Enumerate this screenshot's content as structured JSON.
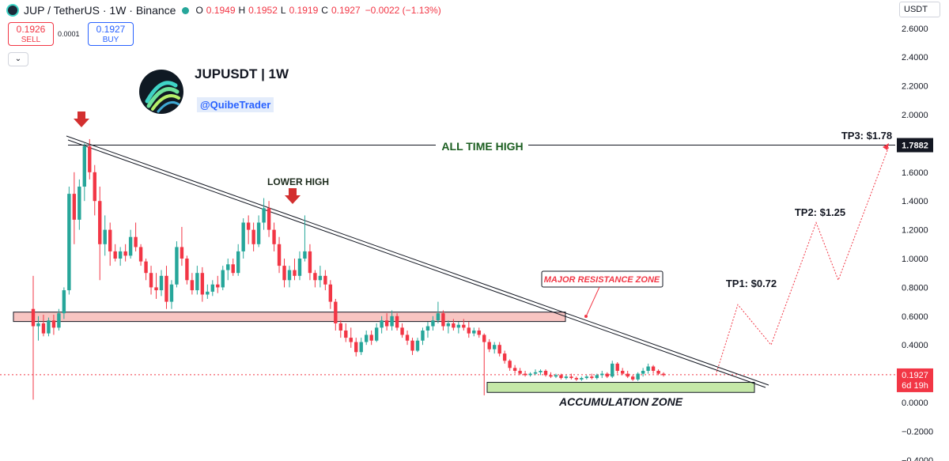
{
  "header": {
    "title": "JUP / TetherUS · 1W · Binance",
    "ohlc": {
      "open_label": "O",
      "open": "0.1949",
      "high_label": "H",
      "high": "0.1952",
      "low_label": "L",
      "low": "0.1919",
      "close_label": "C",
      "close": "0.1927",
      "change": "−0.0022 (−1.13%)"
    }
  },
  "trade": {
    "sell_price": "0.1926",
    "sell_label": "SELL",
    "spread": "0.0001",
    "buy_price": "0.1927",
    "buy_label": "BUY"
  },
  "collapse_icon": "⌄",
  "brand": {
    "title": "JUPUSDT | 1W",
    "handle": "@QuibeTrader"
  },
  "currency": "USDT",
  "colors": {
    "up": "#26a69a",
    "down": "#f23645",
    "ath_text": "#1b5e20",
    "resistance": "#f23645"
  },
  "chart_data": {
    "type": "candlestick",
    "yaxis": {
      "ticks": [
        2.6,
        2.4,
        2.2,
        2.0,
        1.8,
        1.6,
        1.4,
        1.2,
        1.0,
        0.8,
        0.6,
        0.4,
        0.2,
        0.0,
        -0.2,
        -0.4
      ],
      "tick_labels": [
        "2.6000",
        "2.4000",
        "2.2000",
        "2.0000",
        "1.8000",
        "1.6000",
        "1.4000",
        "1.2000",
        "1.0000",
        "0.8000",
        "0.6000",
        "0.4000",
        "0.2000",
        "0.0000",
        "−0.2000",
        "−0.4000"
      ]
    },
    "price_labels": {
      "ath": "1.7882",
      "ath_value": 1.7882,
      "last": "0.1927",
      "last_value": 0.1927,
      "countdown": "6d 19h"
    },
    "candles": [
      [
        0.65,
        0.88,
        0.02,
        0.53
      ],
      [
        0.53,
        0.6,
        0.43,
        0.55
      ],
      [
        0.55,
        0.61,
        0.46,
        0.48
      ],
      [
        0.48,
        0.59,
        0.46,
        0.57
      ],
      [
        0.57,
        0.61,
        0.47,
        0.52
      ],
      [
        0.52,
        0.65,
        0.5,
        0.62
      ],
      [
        0.62,
        0.8,
        0.58,
        0.78
      ],
      [
        0.78,
        1.5,
        0.75,
        1.45
      ],
      [
        1.45,
        1.6,
        1.1,
        1.27
      ],
      [
        1.27,
        1.55,
        1.2,
        1.5
      ],
      [
        1.5,
        1.8,
        1.4,
        1.78
      ],
      [
        1.78,
        1.83,
        1.55,
        1.6
      ],
      [
        1.6,
        1.65,
        1.3,
        1.4
      ],
      [
        1.4,
        1.5,
        0.85,
        1.1
      ],
      [
        1.1,
        1.3,
        1.02,
        1.2
      ],
      [
        1.2,
        1.25,
        0.95,
        1.05
      ],
      [
        1.05,
        1.1,
        0.98,
        1.0
      ],
      [
        1.0,
        1.08,
        0.95,
        1.05
      ],
      [
        1.05,
        1.1,
        0.98,
        1.02
      ],
      [
        1.02,
        1.2,
        1.0,
        1.15
      ],
      [
        1.15,
        1.25,
        1.05,
        1.08
      ],
      [
        1.08,
        1.1,
        0.95,
        0.98
      ],
      [
        0.98,
        1.0,
        0.85,
        0.9
      ],
      [
        0.9,
        0.95,
        0.75,
        0.8
      ],
      [
        0.8,
        0.9,
        0.72,
        0.78
      ],
      [
        0.78,
        0.92,
        0.74,
        0.88
      ],
      [
        0.88,
        0.95,
        0.65,
        0.7
      ],
      [
        0.7,
        0.85,
        0.65,
        0.82
      ],
      [
        0.82,
        1.12,
        0.8,
        1.08
      ],
      [
        1.08,
        1.22,
        0.95,
        1.0
      ],
      [
        1.0,
        1.02,
        0.82,
        0.85
      ],
      [
        0.85,
        0.9,
        0.75,
        0.78
      ],
      [
        0.78,
        0.95,
        0.75,
        0.9
      ],
      [
        0.9,
        0.94,
        0.7,
        0.75
      ],
      [
        0.75,
        0.82,
        0.72,
        0.77
      ],
      [
        0.77,
        0.85,
        0.74,
        0.82
      ],
      [
        0.82,
        0.88,
        0.76,
        0.8
      ],
      [
        0.8,
        0.95,
        0.78,
        0.92
      ],
      [
        0.92,
        1.0,
        0.85,
        0.96
      ],
      [
        0.96,
        1.0,
        0.88,
        0.9
      ],
      [
        0.9,
        1.1,
        0.88,
        1.05
      ],
      [
        1.05,
        1.28,
        1.0,
        1.25
      ],
      [
        1.25,
        1.3,
        1.1,
        1.2
      ],
      [
        1.2,
        1.25,
        1.05,
        1.1
      ],
      [
        1.1,
        1.3,
        1.08,
        1.25
      ],
      [
        1.25,
        1.42,
        1.2,
        1.35
      ],
      [
        1.35,
        1.4,
        1.15,
        1.2
      ],
      [
        1.2,
        1.25,
        1.05,
        1.1
      ],
      [
        1.1,
        1.15,
        0.9,
        0.95
      ],
      [
        0.95,
        1.0,
        0.8,
        0.85
      ],
      [
        0.85,
        0.95,
        0.8,
        0.92
      ],
      [
        0.92,
        1.0,
        0.85,
        0.88
      ],
      [
        0.88,
        1.05,
        0.85,
        1.0
      ],
      [
        1.0,
        1.3,
        0.98,
        1.05
      ],
      [
        1.05,
        1.1,
        0.85,
        0.9
      ],
      [
        0.9,
        0.92,
        0.8,
        0.85
      ],
      [
        0.85,
        0.95,
        0.8,
        0.88
      ],
      [
        0.88,
        0.92,
        0.78,
        0.82
      ],
      [
        0.82,
        0.85,
        0.65,
        0.7
      ],
      [
        0.7,
        0.72,
        0.5,
        0.55
      ],
      [
        0.55,
        0.57,
        0.45,
        0.5
      ],
      [
        0.5,
        0.55,
        0.42,
        0.45
      ],
      [
        0.45,
        0.52,
        0.38,
        0.42
      ],
      [
        0.42,
        0.45,
        0.32,
        0.35
      ],
      [
        0.35,
        0.45,
        0.33,
        0.42
      ],
      [
        0.42,
        0.5,
        0.4,
        0.47
      ],
      [
        0.47,
        0.5,
        0.4,
        0.43
      ],
      [
        0.43,
        0.55,
        0.42,
        0.52
      ],
      [
        0.52,
        0.6,
        0.48,
        0.57
      ],
      [
        0.57,
        0.62,
        0.5,
        0.53
      ],
      [
        0.53,
        0.64,
        0.5,
        0.6
      ],
      [
        0.6,
        0.62,
        0.5,
        0.52
      ],
      [
        0.52,
        0.55,
        0.45,
        0.47
      ],
      [
        0.47,
        0.5,
        0.4,
        0.43
      ],
      [
        0.43,
        0.45,
        0.33,
        0.36
      ],
      [
        0.36,
        0.45,
        0.35,
        0.43
      ],
      [
        0.43,
        0.52,
        0.4,
        0.5
      ],
      [
        0.5,
        0.56,
        0.45,
        0.53
      ],
      [
        0.53,
        0.6,
        0.5,
        0.57
      ],
      [
        0.57,
        0.7,
        0.55,
        0.62
      ],
      [
        0.62,
        0.64,
        0.5,
        0.53
      ],
      [
        0.53,
        0.57,
        0.48,
        0.55
      ],
      [
        0.55,
        0.58,
        0.5,
        0.52
      ],
      [
        0.52,
        0.56,
        0.48,
        0.54
      ],
      [
        0.54,
        0.58,
        0.5,
        0.52
      ],
      [
        0.52,
        0.56,
        0.45,
        0.48
      ],
      [
        0.48,
        0.52,
        0.46,
        0.5
      ],
      [
        0.5,
        0.52,
        0.45,
        0.47
      ],
      [
        0.47,
        0.48,
        0.05,
        0.42
      ],
      [
        0.42,
        0.44,
        0.35,
        0.37
      ],
      [
        0.37,
        0.42,
        0.34,
        0.4
      ],
      [
        0.4,
        0.42,
        0.32,
        0.34
      ],
      [
        0.34,
        0.36,
        0.27,
        0.29
      ],
      [
        0.29,
        0.3,
        0.22,
        0.24
      ],
      [
        0.24,
        0.26,
        0.2,
        0.22
      ],
      [
        0.22,
        0.24,
        0.19,
        0.2
      ],
      [
        0.2,
        0.22,
        0.18,
        0.19
      ],
      [
        0.19,
        0.21,
        0.18,
        0.2
      ],
      [
        0.2,
        0.23,
        0.19,
        0.21
      ],
      [
        0.21,
        0.23,
        0.19,
        0.22
      ],
      [
        0.22,
        0.23,
        0.18,
        0.19
      ],
      [
        0.19,
        0.21,
        0.17,
        0.18
      ],
      [
        0.18,
        0.2,
        0.17,
        0.19
      ],
      [
        0.19,
        0.2,
        0.16,
        0.17
      ],
      [
        0.17,
        0.19,
        0.16,
        0.18
      ],
      [
        0.18,
        0.2,
        0.16,
        0.17
      ],
      [
        0.17,
        0.18,
        0.15,
        0.16
      ],
      [
        0.16,
        0.18,
        0.15,
        0.17
      ],
      [
        0.17,
        0.19,
        0.16,
        0.18
      ],
      [
        0.18,
        0.2,
        0.16,
        0.17
      ],
      [
        0.17,
        0.2,
        0.16,
        0.19
      ],
      [
        0.19,
        0.22,
        0.17,
        0.2
      ],
      [
        0.2,
        0.21,
        0.17,
        0.18
      ],
      [
        0.18,
        0.29,
        0.17,
        0.27
      ],
      [
        0.27,
        0.28,
        0.2,
        0.22
      ],
      [
        0.22,
        0.24,
        0.19,
        0.2
      ],
      [
        0.2,
        0.22,
        0.17,
        0.18
      ],
      [
        0.18,
        0.19,
        0.15,
        0.16
      ],
      [
        0.16,
        0.21,
        0.15,
        0.2
      ],
      [
        0.2,
        0.24,
        0.18,
        0.22
      ],
      [
        0.22,
        0.27,
        0.2,
        0.25
      ],
      [
        0.25,
        0.26,
        0.2,
        0.22
      ],
      [
        0.22,
        0.23,
        0.19,
        0.2
      ],
      [
        0.2,
        0.21,
        0.18,
        0.19
      ]
    ],
    "horizontal_lines": [
      {
        "name": "ALL TIME HIGH",
        "value": 1.7882
      }
    ],
    "zones": [
      {
        "name": "MAJOR RESISTANCE ZONE",
        "low": 0.59,
        "high": 0.65,
        "callout": "MAJOR RESISTANCE ZONE"
      },
      {
        "name": "ACCUMULATION ZONE",
        "low": 0.07,
        "high": 0.14,
        "label": "ACCUMULATION ZONE"
      }
    ],
    "annotations": {
      "lower_high": "LOWER HIGH",
      "ath": "ALL TIME HIGH"
    },
    "targets": [
      {
        "label": "TP1: $0.72",
        "value": 0.72
      },
      {
        "label": "TP2: $1.25",
        "value": 1.25
      },
      {
        "label": "TP3: $1.78",
        "value": 1.78
      }
    ],
    "projection_path": [
      0.19,
      0.68,
      0.4,
      0.72,
      1.25,
      0.85,
      1.78
    ]
  }
}
